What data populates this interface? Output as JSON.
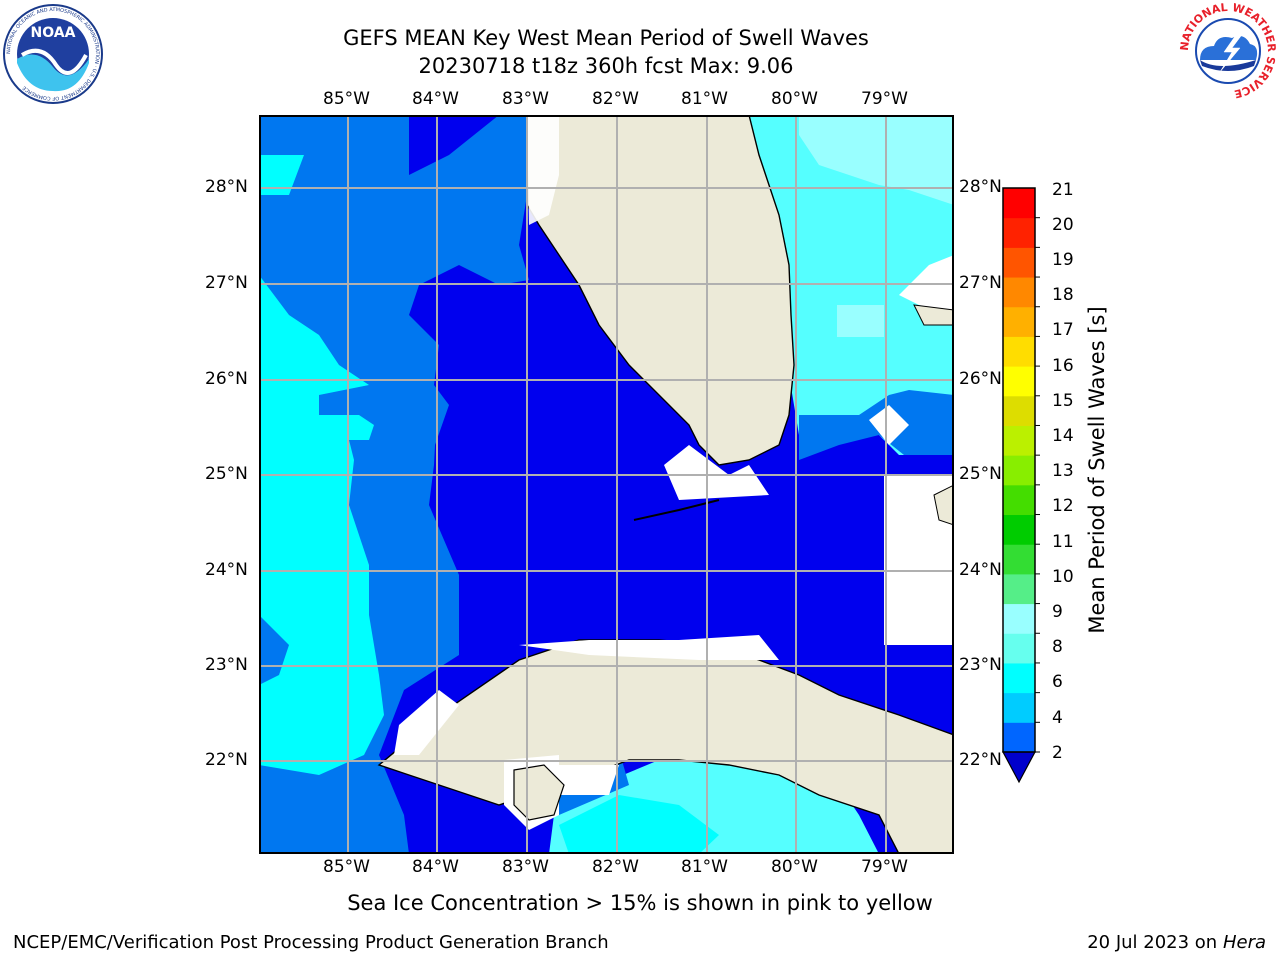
{
  "header": {
    "title_line1": "GEFS MEAN Key West Mean Period of Swell Waves",
    "title_line2": "20230718 t18z 360h fcst   Max: 9.06"
  },
  "logos": {
    "left": "NOAA",
    "left_ring_text": "NATIONAL OCEANIC AND ATMOSPHERIC ADMINISTRATION · U.S. DEPARTMENT OF COMMERCE",
    "right_ring_text": "NATIONAL WEATHER SERVICE"
  },
  "map": {
    "lon_labels": [
      "85°W",
      "84°W",
      "83°W",
      "82°W",
      "81°W",
      "80°W",
      "79°W"
    ],
    "lat_labels": [
      "28°N",
      "27°N",
      "26°N",
      "25°N",
      "24°N",
      "23°N",
      "22°N"
    ],
    "grid": true
  },
  "colorbar": {
    "label": "Mean Period of Swell Waves [s]",
    "ticks": [
      "21",
      "20",
      "19",
      "18",
      "17",
      "16",
      "15",
      "14",
      "13",
      "12",
      "11",
      "10",
      "9",
      "8",
      "6",
      "4",
      "2"
    ],
    "colors_bottom_to_top": [
      "#0066ff",
      "#00ccff",
      "#00ffff",
      "#66ffee",
      "#99ffff",
      "#55ee88",
      "#33dd33",
      "#00cc00",
      "#44dd00",
      "#88ee00",
      "#bbf000",
      "#dddd00",
      "#ffff00",
      "#ffdd00",
      "#ffb000",
      "#ff8800",
      "#ff5500",
      "#ff2200",
      "#ff0000"
    ],
    "extend_below_color": "#0000cc"
  },
  "colors": {
    "land": "#ecead8",
    "deep_blue": "#0000ee",
    "med_blue": "#0077f0",
    "cyan": "#00ffff",
    "light_cyan": "#55ffff",
    "pale_cyan": "#99ffff"
  },
  "note": "Sea Ice Concentration > 15% is shown in pink to yellow",
  "footer": {
    "left": "NCEP/EMC/Verification Post Processing Product Generation Branch",
    "date": "20 Jul 2023 on ",
    "host": "Hera"
  }
}
